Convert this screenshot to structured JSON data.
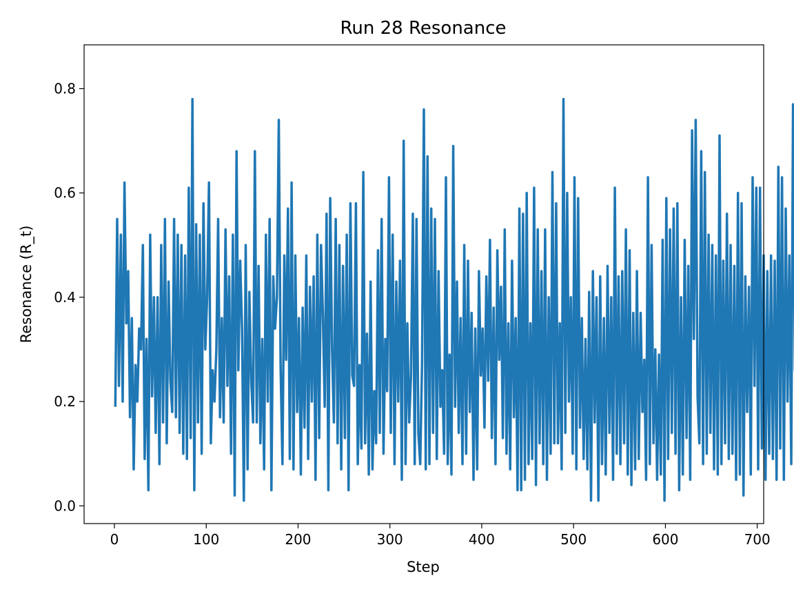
{
  "chart_data": {
    "type": "line",
    "title": "Run 28 Resonance",
    "xlabel": "Step",
    "ylabel": "Resonance (R_t)",
    "xlim": [
      -33,
      707
    ],
    "ylim": [
      -0.034,
      0.884
    ],
    "xticks": [
      0,
      100,
      200,
      300,
      400,
      500,
      600,
      700
    ],
    "yticks": [
      0.0,
      0.2,
      0.4,
      0.6,
      0.8
    ],
    "ytick_labels": [
      "0.0",
      "0.2",
      "0.4",
      "0.6",
      "0.8"
    ],
    "grid": false,
    "legend": "none",
    "series": [
      {
        "color": "#1f77b4",
        "x_start": 1,
        "x_step": 2,
        "y": [
          0.19,
          0.55,
          0.23,
          0.52,
          0.2,
          0.62,
          0.35,
          0.45,
          0.17,
          0.36,
          0.07,
          0.27,
          0.2,
          0.34,
          0.3,
          0.5,
          0.09,
          0.32,
          0.03,
          0.52,
          0.21,
          0.4,
          0.14,
          0.4,
          0.08,
          0.5,
          0.16,
          0.55,
          0.12,
          0.43,
          0.24,
          0.18,
          0.55,
          0.17,
          0.52,
          0.14,
          0.5,
          0.1,
          0.48,
          0.09,
          0.61,
          0.13,
          0.78,
          0.03,
          0.54,
          0.16,
          0.52,
          0.1,
          0.58,
          0.3,
          0.4,
          0.62,
          0.12,
          0.26,
          0.2,
          0.3,
          0.55,
          0.17,
          0.36,
          0.16,
          0.53,
          0.23,
          0.44,
          0.1,
          0.52,
          0.02,
          0.68,
          0.26,
          0.47,
          0.34,
          0.01,
          0.5,
          0.07,
          0.41,
          0.24,
          0.16,
          0.68,
          0.16,
          0.46,
          0.12,
          0.32,
          0.07,
          0.52,
          0.2,
          0.55,
          0.03,
          0.44,
          0.34,
          0.4,
          0.74,
          0.27,
          0.08,
          0.48,
          0.28,
          0.57,
          0.09,
          0.62,
          0.07,
          0.48,
          0.18,
          0.36,
          0.06,
          0.38,
          0.15,
          0.48,
          0.09,
          0.42,
          0.2,
          0.44,
          0.05,
          0.52,
          0.13,
          0.5,
          0.37,
          0.19,
          0.56,
          0.03,
          0.59,
          0.3,
          0.16,
          0.55,
          0.12,
          0.5,
          0.07,
          0.46,
          0.13,
          0.52,
          0.03,
          0.58,
          0.25,
          0.23,
          0.58,
          0.08,
          0.27,
          0.11,
          0.64,
          0.12,
          0.33,
          0.06,
          0.43,
          0.07,
          0.22,
          0.12,
          0.49,
          0.14,
          0.55,
          0.1,
          0.32,
          0.22,
          0.63,
          0.14,
          0.52,
          0.08,
          0.43,
          0.2,
          0.47,
          0.05,
          0.7,
          0.08,
          0.35,
          0.16,
          0.25,
          0.56,
          0.08,
          0.55,
          0.14,
          0.08,
          0.27,
          0.76,
          0.07,
          0.67,
          0.08,
          0.57,
          0.14,
          0.55,
          0.09,
          0.45,
          0.19,
          0.26,
          0.1,
          0.63,
          0.08,
          0.29,
          0.06,
          0.69,
          0.19,
          0.43,
          0.14,
          0.36,
          0.08,
          0.5,
          0.1,
          0.47,
          0.18,
          0.37,
          0.05,
          0.34,
          0.07,
          0.45,
          0.25,
          0.34,
          0.15,
          0.44,
          0.24,
          0.51,
          0.13,
          0.38,
          0.08,
          0.49,
          0.28,
          0.42,
          0.13,
          0.53,
          0.1,
          0.35,
          0.07,
          0.47,
          0.17,
          0.36,
          0.03,
          0.57,
          0.03,
          0.56,
          0.05,
          0.6,
          0.08,
          0.35,
          0.09,
          0.61,
          0.04,
          0.53,
          0.12,
          0.45,
          0.08,
          0.53,
          0.05,
          0.4,
          0.1,
          0.64,
          0.12,
          0.58,
          0.12,
          0.35,
          0.07,
          0.78,
          0.14,
          0.6,
          0.2,
          0.4,
          0.1,
          0.63,
          0.07,
          0.59,
          0.15,
          0.36,
          0.09,
          0.32,
          0.07,
          0.41,
          0.01,
          0.45,
          0.16,
          0.4,
          0.01,
          0.44,
          0.08,
          0.36,
          0.06,
          0.46,
          0.14,
          0.4,
          0.05,
          0.61,
          0.1,
          0.44,
          0.08,
          0.45,
          0.12,
          0.53,
          0.06,
          0.49,
          0.04,
          0.37,
          0.07,
          0.45,
          0.09,
          0.37,
          0.18,
          0.28,
          0.05,
          0.63,
          0.08,
          0.5,
          0.12,
          0.3,
          0.05,
          0.29,
          0.06,
          0.51,
          0.01,
          0.59,
          0.09,
          0.53,
          0.14,
          0.57,
          0.1,
          0.58,
          0.03,
          0.4,
          0.06,
          0.51,
          0.13,
          0.46,
          0.05,
          0.72,
          0.32,
          0.74,
          0.21,
          0.12,
          0.68,
          0.08,
          0.64,
          0.1,
          0.52,
          0.14,
          0.5,
          0.07,
          0.48,
          0.06,
          0.71,
          0.08,
          0.47,
          0.12,
          0.56,
          0.09,
          0.5,
          0.1,
          0.46,
          0.05,
          0.6,
          0.06,
          0.58,
          0.02,
          0.44,
          0.18,
          0.42,
          0.06,
          0.63,
          0.23,
          0.61,
          0.07,
          0.61,
          0.11,
          0.48,
          0.05,
          0.45,
          0.1,
          0.48,
          0.09,
          0.47,
          0.05,
          0.65,
          0.11,
          0.63,
          0.05,
          0.57,
          0.2,
          0.48,
          0.08,
          0.77,
          0.26,
          0.37,
          0.28
        ]
      }
    ]
  }
}
